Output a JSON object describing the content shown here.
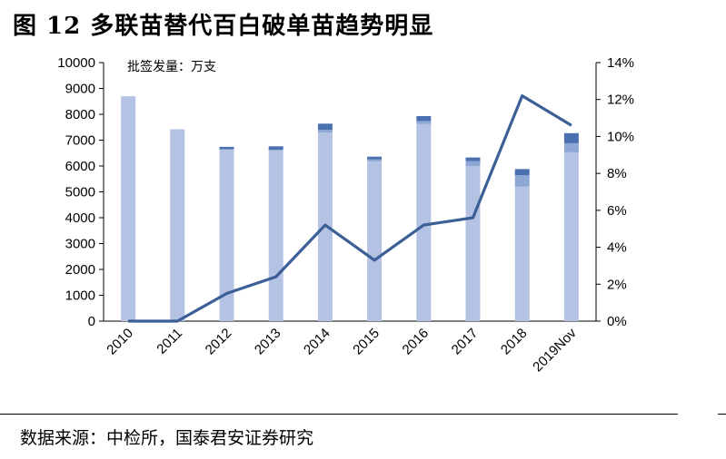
{
  "title": "图 12 多联苗替代百白破单苗趋势明显",
  "source": "数据来源：中检所，国泰君安证券研究",
  "chart_data": {
    "type": "bar",
    "unit_label": "批签发量：万支",
    "categories": [
      "2010",
      "2011",
      "2012",
      "2013",
      "2014",
      "2015",
      "2016",
      "2017",
      "2018",
      "2019Nov"
    ],
    "series": [
      {
        "type": "bar",
        "color": "#b4c3e3",
        "values": [
          8700,
          7420,
          6640,
          6620,
          7300,
          6180,
          7620,
          6000,
          5200,
          6530
        ]
      },
      {
        "type": "bar",
        "color": "#8ea6d3",
        "values": [
          0,
          0,
          0,
          0,
          100,
          70,
          120,
          190,
          450,
          350
        ]
      },
      {
        "type": "bar",
        "color": "#4a70b0",
        "values": [
          0,
          0,
          100,
          140,
          240,
          110,
          190,
          140,
          230,
          390
        ]
      },
      {
        "type": "line",
        "axis": "right",
        "color": "#3b5f96",
        "values": [
          0,
          0,
          1.5,
          2.4,
          5.2,
          3.3,
          5.2,
          5.6,
          12.2,
          10.6
        ]
      }
    ],
    "y_left": {
      "min": 0,
      "max": 10000,
      "step": 1000,
      "ticks": [
        "0",
        "1000",
        "2000",
        "3000",
        "4000",
        "5000",
        "6000",
        "7000",
        "8000",
        "9000",
        "10000"
      ]
    },
    "y_right": {
      "min": 0,
      "max": 14,
      "step": 2,
      "ticks": [
        "0%",
        "2%",
        "4%",
        "6%",
        "8%",
        "10%",
        "12%",
        "14%"
      ]
    },
    "grid": false,
    "legend": "none"
  }
}
